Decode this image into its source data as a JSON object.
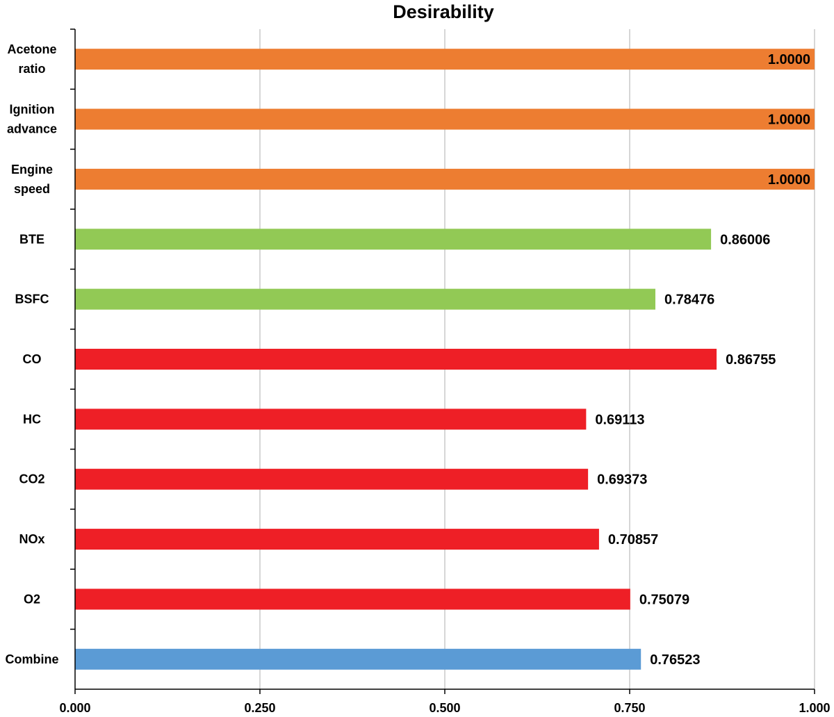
{
  "chart_data": {
    "type": "bar",
    "orientation": "horizontal",
    "title": "Desirability",
    "xlabel": "",
    "ylabel": "",
    "xlim": [
      0,
      1
    ],
    "x_ticks": [
      "0.000",
      "0.250",
      "0.500",
      "0.750",
      "1.000"
    ],
    "grid": "vertical",
    "legend": "none",
    "categories": [
      {
        "label": [
          "Acetone",
          "ratio"
        ],
        "value": 1.0,
        "value_label": "1.0000",
        "color": "#ED7D31"
      },
      {
        "label": [
          "Ignition",
          "advance"
        ],
        "value": 1.0,
        "value_label": "1.0000",
        "color": "#ED7D31"
      },
      {
        "label": [
          "Engine",
          "speed"
        ],
        "value": 1.0,
        "value_label": "1.0000",
        "color": "#ED7D31"
      },
      {
        "label": [
          "BTE"
        ],
        "value": 0.86006,
        "value_label": "0.86006",
        "color": "#92C955"
      },
      {
        "label": [
          "BSFC"
        ],
        "value": 0.78476,
        "value_label": "0.78476",
        "color": "#92C955"
      },
      {
        "label": [
          "CO"
        ],
        "value": 0.86755,
        "value_label": "0.86755",
        "color": "#EE1F26"
      },
      {
        "label": [
          "HC"
        ],
        "value": 0.69113,
        "value_label": "0.69113",
        "color": "#EE1F26"
      },
      {
        "label": [
          "CO2"
        ],
        "value": 0.69373,
        "value_label": "0.69373",
        "color": "#EE1F26"
      },
      {
        "label": [
          "NOx"
        ],
        "value": 0.70857,
        "value_label": "0.70857",
        "color": "#EE1F26"
      },
      {
        "label": [
          "O2"
        ],
        "value": 0.75079,
        "value_label": "0.75079",
        "color": "#EE1F26"
      },
      {
        "label": [
          "Combine"
        ],
        "value": 0.76523,
        "value_label": "0.76523",
        "color": "#5B9BD5"
      }
    ]
  }
}
